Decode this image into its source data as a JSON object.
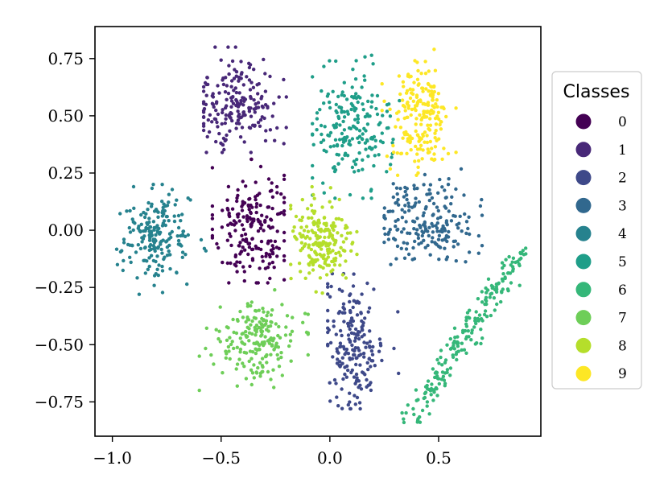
{
  "chart_data": {
    "type": "scatter",
    "title": "",
    "xlabel": "",
    "ylabel": "",
    "xlim": [
      -1.08,
      0.97
    ],
    "ylim": [
      -0.9,
      0.89
    ],
    "x_ticks": [
      -1.0,
      -0.5,
      0.0,
      0.5
    ],
    "x_tick_labels": [
      "−1.0",
      "−0.5",
      "0.0",
      "0.5"
    ],
    "y_ticks": [
      0.75,
      0.5,
      0.25,
      0.0,
      -0.25,
      -0.5,
      -0.75
    ],
    "y_tick_labels": [
      "0.75",
      "0.50",
      "0.25",
      "0.00",
      "−0.25",
      "−0.50",
      "−0.75"
    ],
    "grid": false,
    "legend": {
      "title": "Classes",
      "placement": "outside-right",
      "labels": [
        "0",
        "1",
        "2",
        "3",
        "4",
        "5",
        "6",
        "7",
        "8",
        "9"
      ]
    },
    "colors": [
      "#440154",
      "#482878",
      "#3e4989",
      "#31688e",
      "#26828e",
      "#1f9e89",
      "#35b779",
      "#6ece58",
      "#b5de2b",
      "#fde725"
    ],
    "series": [
      {
        "name": "0",
        "approx_points": 200,
        "cluster": {
          "center": [
            -0.36,
            0.02
          ],
          "spread": [
            0.09,
            0.13
          ],
          "shape": "blob",
          "x_range": [
            -0.54,
            -0.21
          ],
          "y_range": [
            -0.23,
            0.31
          ]
        }
      },
      {
        "name": "1",
        "approx_points": 200,
        "cluster": {
          "center": [
            -0.42,
            0.55
          ],
          "spread": [
            0.1,
            0.1
          ],
          "shape": "blob",
          "x_range": [
            -0.58,
            -0.2
          ],
          "y_range": [
            0.34,
            0.8
          ]
        }
      },
      {
        "name": "2",
        "approx_points": 200,
        "cluster": {
          "center": [
            0.11,
            -0.5
          ],
          "spread": [
            0.07,
            0.14
          ],
          "shape": "blob",
          "x_range": [
            -0.01,
            0.42
          ],
          "y_range": [
            -0.78,
            -0.19
          ]
        }
      },
      {
        "name": "3",
        "approx_points": 200,
        "cluster": {
          "center": [
            0.45,
            0.04
          ],
          "spread": [
            0.11,
            0.09
          ],
          "shape": "blob",
          "x_range": [
            0.25,
            0.7
          ],
          "y_range": [
            -0.15,
            0.31
          ]
        }
      },
      {
        "name": "4",
        "approx_points": 200,
        "cluster": {
          "center": [
            -0.8,
            -0.03
          ],
          "spread": [
            0.08,
            0.09
          ],
          "shape": "blob",
          "x_range": [
            -0.98,
            -0.57
          ],
          "y_range": [
            -0.28,
            0.2
          ]
        }
      },
      {
        "name": "5",
        "approx_points": 200,
        "cluster": {
          "center": [
            0.1,
            0.45
          ],
          "spread": [
            0.09,
            0.13
          ],
          "shape": "blob",
          "x_range": [
            -0.08,
            0.32
          ],
          "y_range": [
            0.14,
            0.81
          ]
        }
      },
      {
        "name": "6",
        "approx_points": 200,
        "cluster": {
          "center": [
            0.6,
            -0.43
          ],
          "spread": [
            0.16,
            0.03
          ],
          "shape": "diagonal",
          "from": [
            0.38,
            -0.82
          ],
          "to": [
            0.88,
            -0.1
          ]
        }
      },
      {
        "name": "7",
        "approx_points": 200,
        "cluster": {
          "center": [
            -0.33,
            -0.48
          ],
          "spread": [
            0.09,
            0.08
          ],
          "shape": "blob",
          "x_range": [
            -0.6,
            -0.1
          ],
          "y_range": [
            -0.7,
            -0.23
          ]
        }
      },
      {
        "name": "8",
        "approx_points": 200,
        "cluster": {
          "center": [
            -0.04,
            -0.05
          ],
          "spread": [
            0.07,
            0.1
          ],
          "shape": "blob",
          "x_range": [
            -0.18,
            0.13
          ],
          "y_range": [
            -0.32,
            0.19
          ]
        }
      },
      {
        "name": "9",
        "approx_points": 200,
        "cluster": {
          "center": [
            0.41,
            0.48
          ],
          "spread": [
            0.07,
            0.12
          ],
          "shape": "blob",
          "x_range": [
            0.24,
            0.58
          ],
          "y_range": [
            0.24,
            0.81
          ]
        }
      }
    ]
  }
}
